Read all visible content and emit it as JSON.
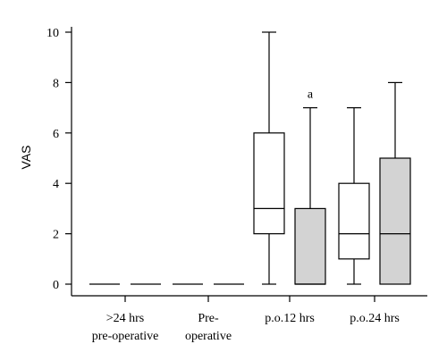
{
  "chart_data": {
    "type": "boxplot",
    "ylabel": "VAS",
    "ylim": [
      0,
      10
    ],
    "yticks": [
      "0",
      "2",
      "4",
      "6",
      "8",
      "10"
    ],
    "categories": [
      {
        "line1": ">24 hrs",
        "line2": "pre-operative"
      },
      {
        "line1": "Pre-",
        "line2": "operative"
      },
      {
        "line1": "p.o.12 hrs",
        "line2": ""
      },
      {
        "line1": "p.o.24 hrs",
        "line2": ""
      }
    ],
    "box_colors": {
      "white": "#ffffff",
      "gray": "#d3d3d3"
    },
    "boxes": [
      {
        "group": 0,
        "fill": "white",
        "min": 0,
        "q1": 0,
        "median": 0,
        "q3": 0,
        "max": 0,
        "annotation": ""
      },
      {
        "group": 0,
        "fill": "gray",
        "min": 0,
        "q1": 0,
        "median": 0,
        "q3": 0,
        "max": 0,
        "annotation": ""
      },
      {
        "group": 1,
        "fill": "white",
        "min": 0,
        "q1": 0,
        "median": 0,
        "q3": 0,
        "max": 0,
        "annotation": ""
      },
      {
        "group": 1,
        "fill": "gray",
        "min": 0,
        "q1": 0,
        "median": 0,
        "q3": 0,
        "max": 0,
        "annotation": ""
      },
      {
        "group": 2,
        "fill": "white",
        "min": 0,
        "q1": 2,
        "median": 3,
        "q3": 6,
        "max": 10,
        "annotation": ""
      },
      {
        "group": 2,
        "fill": "gray",
        "min": 0,
        "q1": 0,
        "median": 0,
        "q3": 3,
        "max": 7,
        "annotation": "a"
      },
      {
        "group": 3,
        "fill": "white",
        "min": 0,
        "q1": 1,
        "median": 2,
        "q3": 4,
        "max": 7,
        "annotation": ""
      },
      {
        "group": 3,
        "fill": "gray",
        "min": 0,
        "q1": 0,
        "median": 2,
        "q3": 5,
        "max": 8,
        "annotation": ""
      }
    ]
  }
}
